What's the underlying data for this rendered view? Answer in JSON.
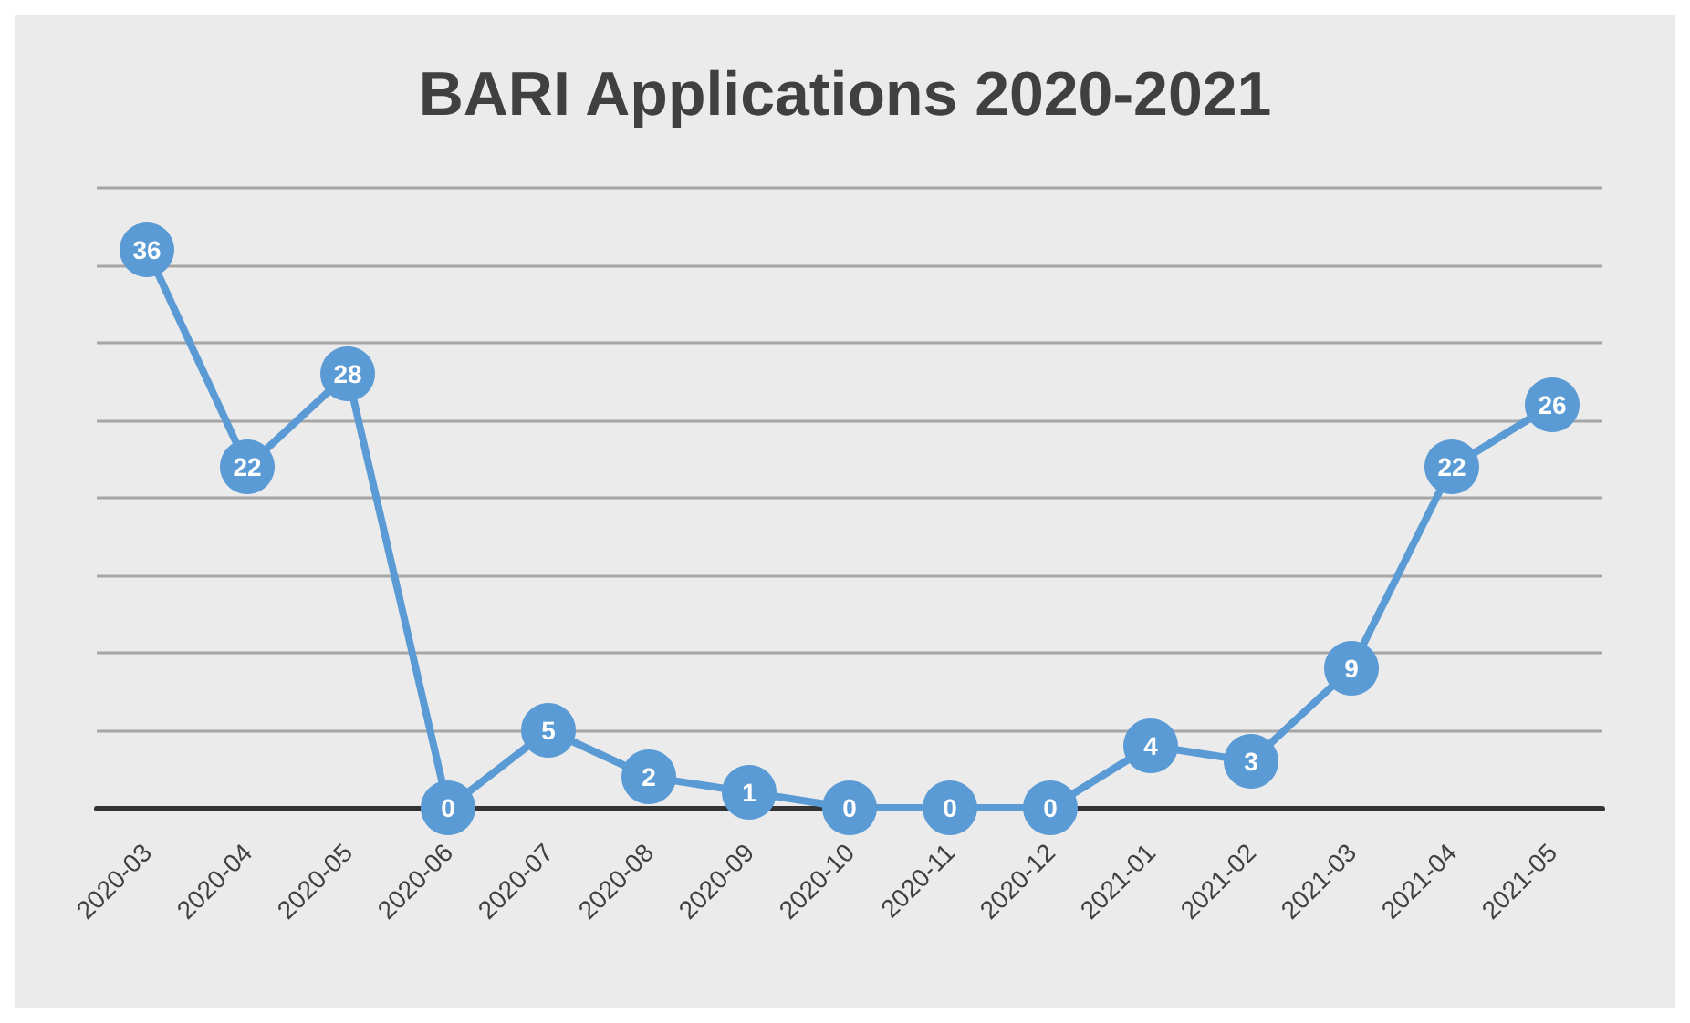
{
  "chart_data": {
    "type": "line",
    "title": "BARI Applications 2020-2021",
    "categories": [
      "2020-03",
      "2020-04",
      "2020-05",
      "2020-06",
      "2020-07",
      "2020-08",
      "2020-09",
      "2020-10",
      "2020-11",
      "2020-12",
      "2021-01",
      "2021-02",
      "2021-03",
      "2021-04",
      "2021-05"
    ],
    "series": [
      {
        "color": "#5b9bd5",
        "values": [
          36,
          22,
          28,
          0,
          5,
          2,
          1,
          0,
          0,
          0,
          4,
          3,
          9,
          22,
          26
        ]
      }
    ],
    "ylim": [
      0,
      40
    ],
    "yticks": [
      {
        "value": 0,
        "label": null
      },
      {
        "value": 5,
        "label": null
      },
      {
        "value": 10,
        "label": null
      },
      {
        "value": 15,
        "label": null
      },
      {
        "value": 20,
        "label": null
      },
      {
        "value": 25,
        "label": null
      },
      {
        "value": 30,
        "label": null
      },
      {
        "value": 35,
        "label": null
      },
      {
        "value": 40,
        "label": null
      }
    ],
    "grid": "y",
    "tick_labels": "x",
    "data_labels": true,
    "marker": "circle",
    "line_style": "solid"
  }
}
